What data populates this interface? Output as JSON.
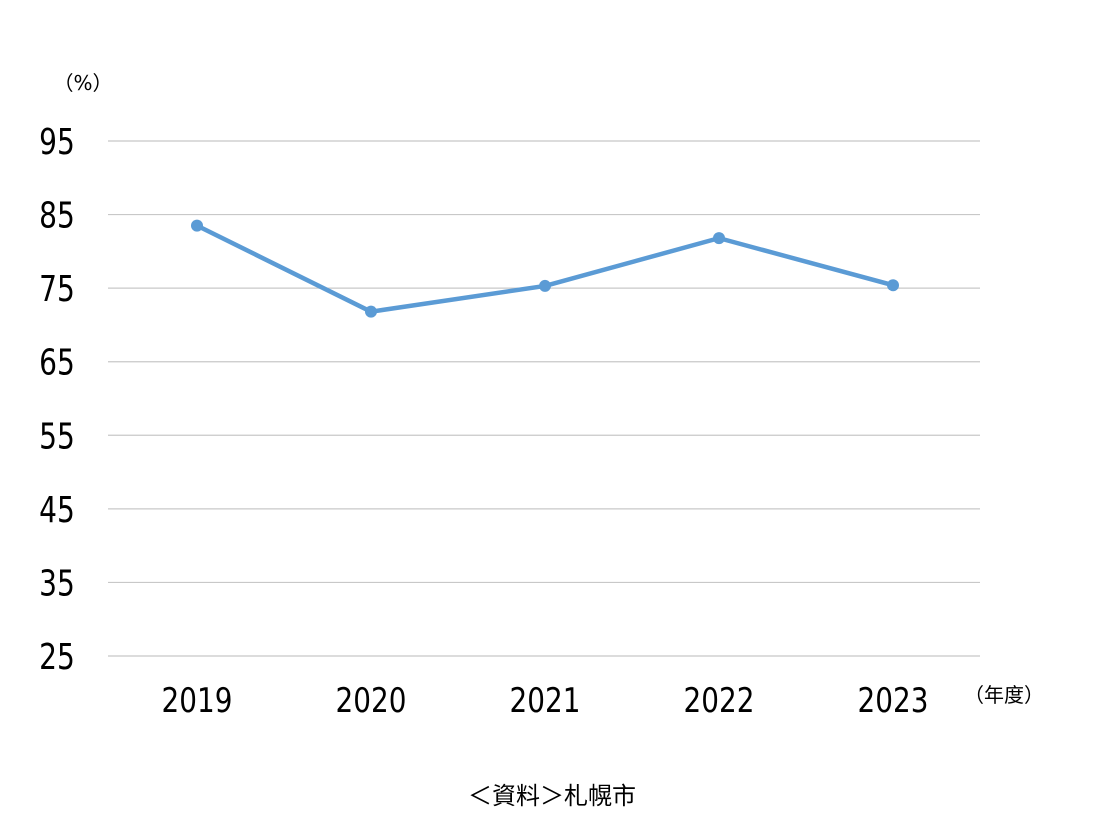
{
  "chart_data": {
    "type": "line",
    "categories": [
      "2019",
      "2020",
      "2021",
      "2022",
      "2023"
    ],
    "series": [
      {
        "values": [
          83.5,
          71.8,
          75.3,
          81.8,
          75.4
        ],
        "color": "#5b9bd5"
      }
    ],
    "ylabel": "（%）",
    "xlabel": "（年度）",
    "ylim": [
      25,
      95
    ],
    "yticks": [
      "95",
      "85",
      "75",
      "65",
      "55",
      "45",
      "35",
      "25"
    ],
    "grid": true,
    "legend": "none",
    "source": "＜資料＞札幌市"
  }
}
